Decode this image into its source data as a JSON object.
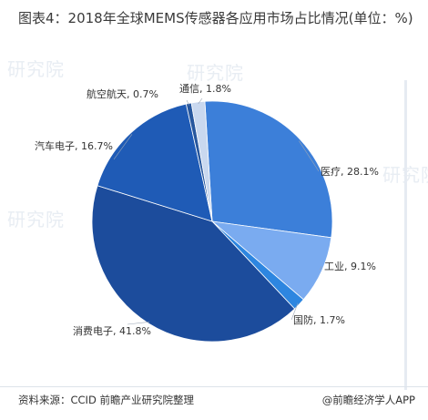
{
  "title": "图表4：2018年全球MEMS传感器各应用市场占比情况(单位：%)",
  "source": "资料来源：CCID 前瞻产业研究院整理",
  "brand": "@前瞻经济学人APP",
  "watermark": "研究院",
  "chart_data": {
    "type": "pie",
    "title": "图表4：2018年全球MEMS传感器各应用市场占比情况(单位：%)",
    "unit": "%",
    "slices": [
      {
        "name": "医疗",
        "value": 28.1,
        "label": "医疗, 28.1%",
        "color": "#3c7fd9"
      },
      {
        "name": "工业",
        "value": 9.1,
        "label": "工业, 9.1%",
        "color": "#7aabf0"
      },
      {
        "name": "国防",
        "value": 1.7,
        "label": "国防, 1.7%",
        "color": "#2d86e0"
      },
      {
        "name": "消费电子",
        "value": 41.8,
        "label": "消费电子, 41.8%",
        "color": "#1c4c9c"
      },
      {
        "name": "汽车电子",
        "value": 16.7,
        "label": "汽车电子, 16.7%",
        "color": "#1f5bb6"
      },
      {
        "name": "航空航天",
        "value": 0.7,
        "label": "航空航天, 0.7%",
        "color": "#27579e"
      },
      {
        "name": "通信",
        "value": 1.8,
        "label": "通信, 1.8%",
        "color": "#c9d8ef"
      }
    ]
  }
}
